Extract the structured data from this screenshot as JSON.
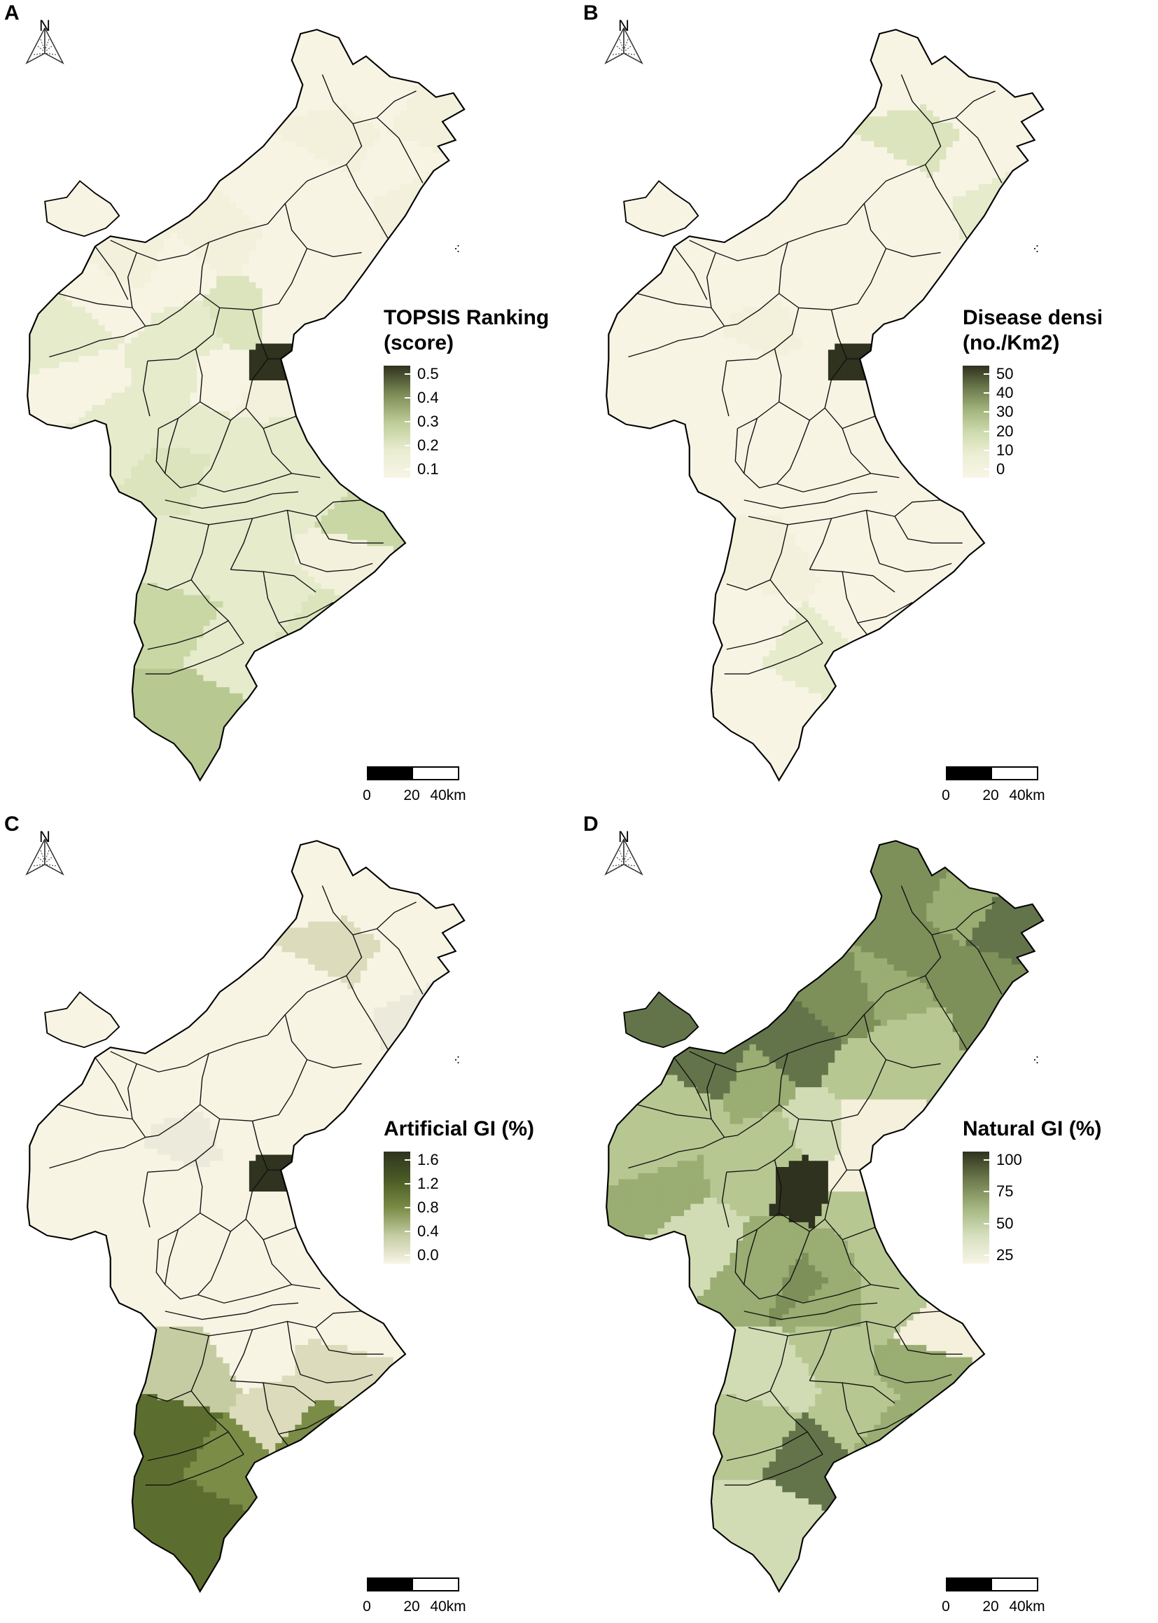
{
  "panels": [
    {
      "id": "A",
      "legend": {
        "title_line1": "TOPSIS Ranking",
        "title_line2": "(score)",
        "ticks": [
          "0.5",
          "0.4",
          "0.3",
          "0.2",
          "0.1"
        ],
        "gradient": [
          "#2f321e",
          "#7c8a55",
          "#bccb95",
          "#e8ecd0",
          "#f8f5e6"
        ]
      },
      "palette": [
        "#f8f4e4",
        "#f3f1dc",
        "#e6ebcc",
        "#dbe4bc",
        "#c8d7a4",
        "#b7c990",
        "#6d7b4e",
        "#2f331f"
      ],
      "fills": [
        0,
        0,
        1,
        1,
        0,
        0,
        1,
        0,
        1,
        0,
        0,
        0,
        0,
        2,
        1,
        2,
        3,
        0,
        2,
        0,
        2,
        0,
        1,
        2,
        2,
        2,
        2,
        3,
        2,
        2,
        4,
        7,
        2,
        2,
        1,
        2,
        2,
        3,
        4,
        5
      ]
    },
    {
      "id": "B",
      "legend": {
        "title_line1": "Disease densi",
        "title_line2": "(no./Km2)",
        "ticks": [
          "50",
          "40",
          "30",
          "20",
          "10",
          "0"
        ],
        "gradient": [
          "#2f321e",
          "#6d7a4c",
          "#a4b67f",
          "#cfdcaf",
          "#ecefd5",
          "#f8f5e6"
        ]
      },
      "palette": [
        "#f8f4e4",
        "#f3f1dc",
        "#e6ebcc",
        "#dbe4bc",
        "#c8d7a4",
        "#b7c990",
        "#6d7b4e",
        "#2f331f"
      ],
      "fills": [
        0,
        0,
        0,
        3,
        0,
        0,
        2,
        0,
        0,
        0,
        0,
        0,
        0,
        0,
        0,
        1,
        0,
        0,
        0,
        0,
        0,
        0,
        0,
        0,
        0,
        0,
        0,
        0,
        0,
        0,
        0,
        7,
        0,
        1,
        0,
        0,
        2,
        0,
        0,
        0
      ]
    },
    {
      "id": "C",
      "legend": {
        "title_line1": "Artificial GI (%)",
        "title_line2": "",
        "ticks": [
          "1.6",
          "1.2",
          "0.8",
          "0.4",
          "0.0"
        ],
        "gradient": [
          "#2f3320",
          "#4a5b25",
          "#7a8b45",
          "#c4cca4",
          "#f8f5e6"
        ]
      },
      "palette": [
        "#f8f4e4",
        "#eceadb",
        "#dcdcbc",
        "#c6cca2",
        "#7b8c47",
        "#5c6e2f",
        "#2f331f"
      ],
      "fills": [
        0,
        0,
        0,
        2,
        0,
        0,
        1,
        0,
        0,
        0,
        0,
        0,
        0,
        0,
        0,
        1,
        0,
        0,
        0,
        0,
        0,
        0,
        0,
        0,
        0,
        0,
        0,
        0,
        0,
        0,
        0,
        6,
        0,
        3,
        2,
        2,
        4,
        4,
        5,
        5
      ]
    },
    {
      "id": "D",
      "legend": {
        "title_line1": "Natural GI (%)",
        "title_line2": "",
        "ticks": [
          "100",
          "75",
          "50",
          "25"
        ],
        "gradient": [
          "#2f321e",
          "#6d7a4c",
          "#a4b67f",
          "#d7dfbe",
          "#f8f5e6"
        ]
      },
      "palette": [
        "#f4f0dc",
        "#d2dcb4",
        "#b7c792",
        "#9aad72",
        "#7e905a",
        "#64744a",
        "#2f321e"
      ],
      "fills": [
        4,
        3,
        5,
        4,
        3,
        4,
        4,
        4,
        5,
        2,
        2,
        3,
        2,
        2,
        5,
        2,
        1,
        0,
        2,
        3,
        1,
        6,
        2,
        3,
        3,
        2,
        4,
        3,
        3,
        2,
        0,
        0,
        2,
        1,
        3,
        2,
        5,
        3,
        2,
        1
      ]
    }
  ],
  "scalebar": {
    "labels": [
      "0",
      "20",
      "40km"
    ]
  },
  "north": {
    "label": "N"
  }
}
